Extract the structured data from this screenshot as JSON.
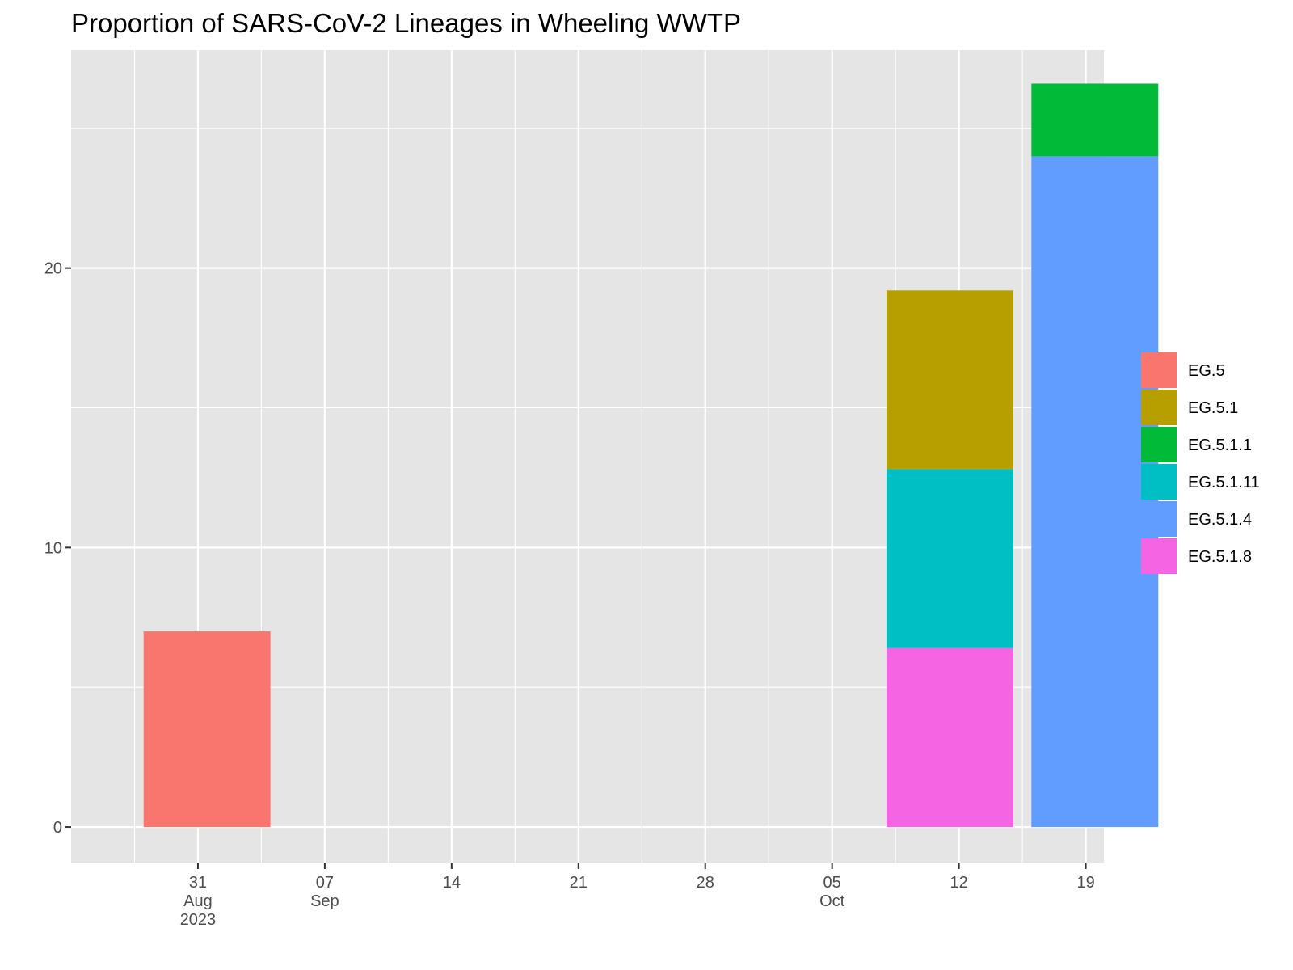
{
  "chart_data": {
    "type": "bar",
    "stacked": true,
    "title": "Proportion of SARS-CoV-2 Lineages in Wheeling WWTP",
    "xlabel": "",
    "ylabel": "",
    "x_axis": {
      "type": "date",
      "range": [
        "2023-08-24",
        "2023-10-20"
      ],
      "ticks": [
        {
          "date": "2023-08-31",
          "lines": [
            "31",
            "Aug",
            "2023"
          ]
        },
        {
          "date": "2023-09-07",
          "lines": [
            "07",
            "Sep"
          ]
        },
        {
          "date": "2023-09-14",
          "lines": [
            "14"
          ]
        },
        {
          "date": "2023-09-21",
          "lines": [
            "21"
          ]
        },
        {
          "date": "2023-09-28",
          "lines": [
            "28"
          ]
        },
        {
          "date": "2023-10-05",
          "lines": [
            "05",
            "Oct"
          ]
        },
        {
          "date": "2023-10-12",
          "lines": [
            "12"
          ]
        },
        {
          "date": "2023-10-19",
          "lines": [
            "19"
          ]
        }
      ]
    },
    "y_axis": {
      "range": [
        -1.3,
        27.8
      ],
      "ticks": [
        0,
        10,
        20
      ]
    },
    "grid": true,
    "legend": {
      "position": "right",
      "items": [
        {
          "name": "EG.5",
          "color": "#F8766D"
        },
        {
          "name": "EG.5.1",
          "color": "#B79F00"
        },
        {
          "name": "EG.5.1.1",
          "color": "#00BA38"
        },
        {
          "name": "EG.5.1.11",
          "color": "#00BFC4"
        },
        {
          "name": "EG.5.1.4",
          "color": "#619CFF"
        },
        {
          "name": "EG.5.1.8",
          "color": "#F564E3"
        }
      ]
    },
    "bars": [
      {
        "start": "2023-08-28",
        "end": "2023-09-04",
        "segments": [
          {
            "series": "EG.5",
            "value": 7.0
          }
        ]
      },
      {
        "start": "2023-10-08",
        "end": "2023-10-15",
        "segments": [
          {
            "series": "EG.5.1.8",
            "value": 6.4
          },
          {
            "series": "EG.5.1.11",
            "value": 6.4
          },
          {
            "series": "EG.5.1",
            "value": 6.4
          }
        ]
      },
      {
        "start": "2023-10-16",
        "end": "2023-10-23",
        "segments": [
          {
            "series": "EG.5.1.4",
            "value": 24.0
          },
          {
            "series": "EG.5.1.1",
            "value": 2.6
          }
        ]
      }
    ]
  }
}
